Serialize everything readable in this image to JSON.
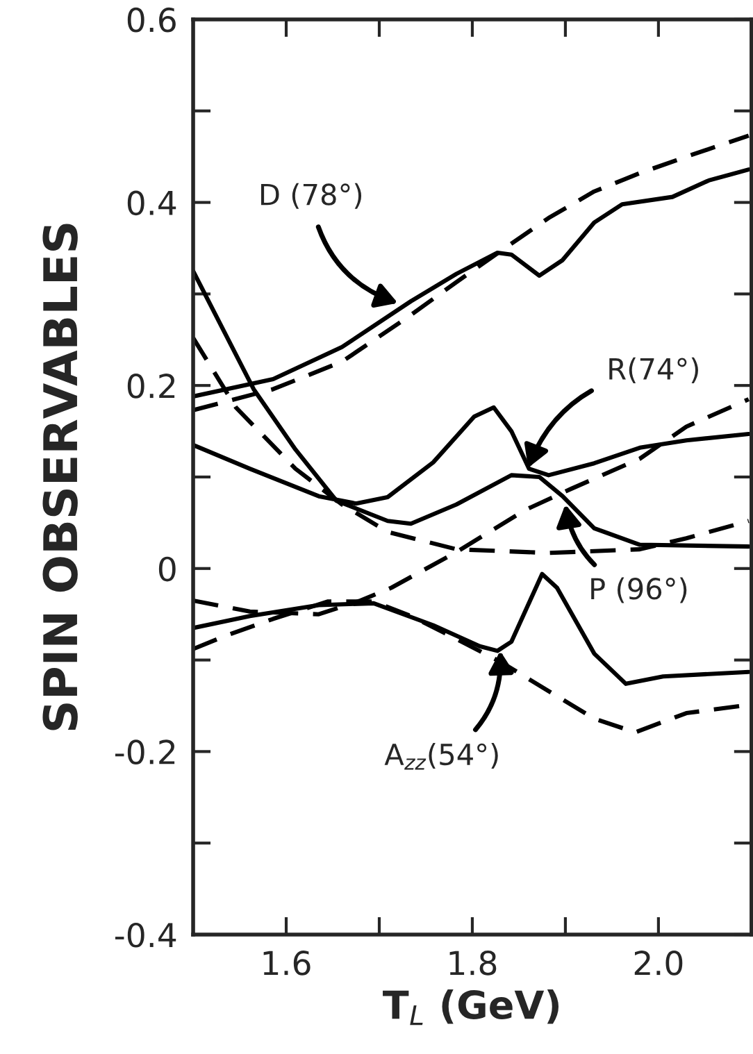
{
  "chart_data": {
    "type": "line",
    "xlabel": "T$_{L}$ (GeV)",
    "ylabel": "SPIN OBSERVABLES",
    "xlim": [
      1.5,
      2.1
    ],
    "ylim": [
      -0.4,
      0.6
    ],
    "xticks": [
      1.6,
      {
        "value": 1.7,
        "label": null
      },
      1.8,
      {
        "value": 1.9,
        "label": null
      },
      {
        "value": 2.0,
        "label": "2.0"
      }
    ],
    "yticks": [
      -0.4,
      {
        "value": -0.3,
        "label": null
      },
      -0.2,
      {
        "value": -0.1,
        "label": null
      },
      0,
      {
        "value": 0.1,
        "label": null
      },
      0.2,
      {
        "value": 0.3,
        "label": null
      },
      0.4,
      {
        "value": 0.5,
        "label": null
      },
      0.6
    ],
    "grid": false,
    "legend": false,
    "series": [
      {
        "color": "#000000",
        "line_style": "solid",
        "x": [
          1.5,
          1.586,
          1.66,
          1.734,
          1.783,
          1.827,
          1.842,
          1.872,
          1.897,
          1.931,
          1.961,
          2.015,
          2.054,
          2.097
        ],
        "values": [
          0.188,
          0.207,
          0.242,
          0.292,
          0.322,
          0.345,
          0.343,
          0.32,
          0.337,
          0.378,
          0.398,
          0.406,
          0.424,
          0.436
        ]
      },
      {
        "color": "#000000",
        "line_style": "dashed",
        "x": [
          1.5,
          1.586,
          1.66,
          1.734,
          1.783,
          1.832,
          1.882,
          1.931,
          1.98,
          2.03,
          2.097
        ],
        "values": [
          0.173,
          0.196,
          0.226,
          0.277,
          0.313,
          0.348,
          0.383,
          0.412,
          0.432,
          0.45,
          0.473
        ]
      },
      {
        "color": "#000000",
        "line_style": "solid",
        "x": [
          1.5,
          1.561,
          1.635,
          1.675,
          1.709,
          1.758,
          1.802,
          1.823,
          1.842,
          1.861,
          1.882,
          1.931,
          1.98,
          2.03,
          2.097
        ],
        "values": [
          0.135,
          0.109,
          0.079,
          0.071,
          0.078,
          0.116,
          0.166,
          0.176,
          0.15,
          0.109,
          0.102,
          0.115,
          0.132,
          0.14,
          0.147
        ]
      },
      {
        "color": "#000000",
        "line_style": "dashed",
        "x": [
          1.5,
          1.561,
          1.635,
          1.68,
          1.713,
          1.783,
          1.857,
          1.906,
          1.98,
          2.03,
          2.097
        ],
        "values": [
          -0.035,
          -0.047,
          -0.05,
          -0.035,
          -0.021,
          0.018,
          0.064,
          0.087,
          0.12,
          0.155,
          0.185
        ]
      },
      {
        "color": "#000000",
        "line_style": "solid",
        "x": [
          1.5,
          1.565,
          1.61,
          1.654,
          1.709,
          1.734,
          1.783,
          1.842,
          1.872,
          1.897,
          1.931,
          1.98,
          2.097
        ],
        "values": [
          0.325,
          0.196,
          0.13,
          0.074,
          0.052,
          0.049,
          0.07,
          0.102,
          0.1,
          0.079,
          0.044,
          0.026,
          0.024
        ]
      },
      {
        "color": "#000000",
        "line_style": "dashed",
        "x": [
          1.5,
          1.546,
          1.61,
          1.66,
          1.709,
          1.783,
          1.882,
          1.98,
          2.03,
          2.097
        ],
        "values": [
          0.252,
          0.176,
          0.109,
          0.07,
          0.04,
          0.021,
          0.017,
          0.021,
          0.033,
          0.052
        ]
      },
      {
        "color": "#000000",
        "line_style": "solid",
        "x": [
          1.5,
          1.561,
          1.635,
          1.694,
          1.758,
          1.808,
          1.827,
          1.842,
          1.875,
          1.891,
          1.931,
          1.965,
          2.005,
          2.097
        ],
        "values": [
          -0.065,
          -0.052,
          -0.04,
          -0.038,
          -0.062,
          -0.085,
          -0.09,
          -0.08,
          -0.006,
          -0.021,
          -0.093,
          -0.126,
          -0.118,
          -0.113
        ]
      },
      {
        "color": "#000000",
        "line_style": "dashed",
        "x": [
          1.5,
          1.536,
          1.586,
          1.645,
          1.694,
          1.734,
          1.783,
          1.832,
          1.882,
          1.931,
          1.975,
          2.03,
          2.097
        ],
        "values": [
          -0.088,
          -0.073,
          -0.055,
          -0.036,
          -0.036,
          -0.052,
          -0.077,
          -0.103,
          -0.134,
          -0.164,
          -0.179,
          -0.158,
          -0.149
        ]
      }
    ],
    "annotations": [
      {
        "text": "D (78°)",
        "x": 1.72,
        "y": 0.29
      },
      {
        "text": "R(74°)",
        "x": 1.86,
        "y": 0.11
      },
      {
        "text": "P (96°)",
        "x": 1.9,
        "y": 0.07
      },
      {
        "text": "A$_{zz}$(54°)",
        "x": 1.83,
        "y": -0.09
      }
    ]
  }
}
